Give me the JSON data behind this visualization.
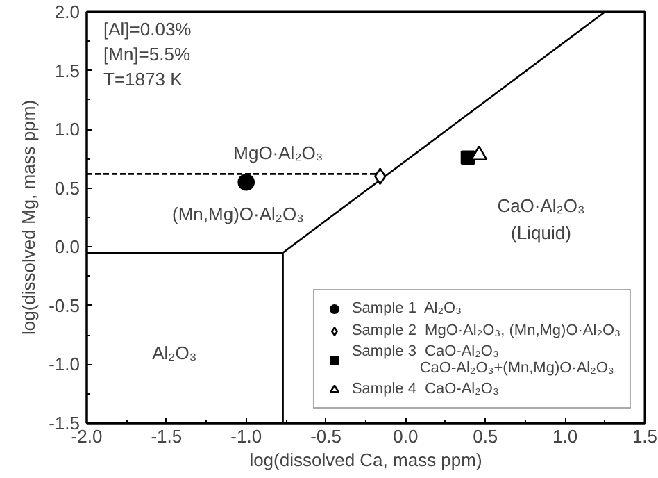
{
  "chart_data": {
    "type": "scatter",
    "xlabel": "log(dissolved Ca, mass ppm)",
    "ylabel": "log(dissolved Mg, mass ppm)",
    "xlim": [
      -2.0,
      1.5
    ],
    "ylim": [
      -1.5,
      2.0
    ],
    "xticks": [
      {
        "value": -2,
        "label": "-2.0"
      },
      {
        "value": -1.5,
        "label": "-1.5"
      },
      {
        "value": -1,
        "label": "-1.0"
      },
      {
        "value": -0.5,
        "label": "-0.5"
      },
      {
        "value": 0,
        "label": "0.0"
      },
      {
        "value": 0.5,
        "label": "0.5"
      },
      {
        "value": 1,
        "label": "1.0"
      },
      {
        "value": 1.5,
        "label": "1.5"
      }
    ],
    "yticks": [
      {
        "value": -1.5,
        "label": "-1.5"
      },
      {
        "value": -1,
        "label": "-1.0"
      },
      {
        "value": -0.5,
        "label": "-0.5"
      },
      {
        "value": 0,
        "label": "0.0"
      },
      {
        "value": 0.5,
        "label": "0.5"
      },
      {
        "value": 1,
        "label": "1.0"
      },
      {
        "value": 1.5,
        "label": "1.5"
      },
      {
        "value": 2,
        "label": "2.0"
      }
    ],
    "grid": false,
    "legend": "bottom right",
    "series": [
      {
        "type": "line",
        "color": "#000000",
        "x": [
          -2.0,
          -0.77
        ],
        "values": [
          -0.05,
          -0.05
        ],
        "line_style": "solid"
      },
      {
        "type": "line",
        "color": "#000000",
        "x": [
          -0.77,
          -0.77
        ],
        "values": [
          -0.05,
          -1.5
        ],
        "line_style": "solid"
      },
      {
        "type": "line",
        "color": "#000000",
        "x": [
          -0.77,
          1.25
        ],
        "values": [
          -0.05,
          2.0
        ],
        "line_style": "solid"
      },
      {
        "type": "line",
        "color": "#000000",
        "x": [
          -2.0,
          -0.16
        ],
        "values": [
          0.62,
          0.62
        ],
        "line_style": "dashed"
      },
      {
        "name": "Sample 1  Al₂O₃",
        "color": "#000000",
        "marker": "circle",
        "x": [
          -1.0
        ],
        "values": [
          0.55
        ]
      },
      {
        "name": "Sample 2  MgO·Al₂O₃, (Mn,Mg)O·Al₂O₃",
        "color": "#ffffff",
        "marker": "diamond",
        "x": [
          -0.16
        ],
        "values": [
          0.6
        ]
      },
      {
        "name": "Sample 3  CaO-Al₂O₃\n                CaO-Al₂O₃+(Mn,Mg)O·Al₂O₃",
        "color": "#000000",
        "marker": "square",
        "x": [
          0.39
        ],
        "values": [
          0.76
        ]
      },
      {
        "name": "Sample 4  CaO-Al₂O₃",
        "color": "#ffffff",
        "marker": "triangle",
        "x": [
          0.46
        ],
        "values": [
          0.78
        ]
      }
    ],
    "annotations": [
      "[Al]=0.03%",
      "[Mn]=5.5%",
      "T=1873 K",
      "MgO·Al₂O₃",
      "(Mn,Mg)O·Al₂O₃",
      "CaO·Al₂O₃",
      "(Liquid)",
      "Al₂O₃"
    ]
  }
}
